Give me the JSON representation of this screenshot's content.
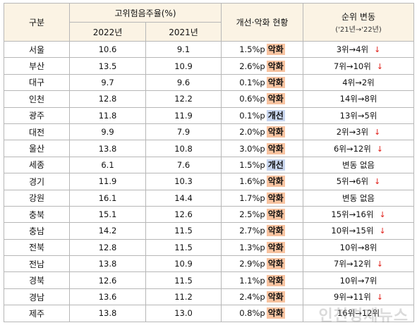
{
  "header": {
    "region": "구분",
    "rate_group": "고위험음주율(%)",
    "year_2022": "2022년",
    "year_2021": "2021년",
    "status": "개선·악화 현황",
    "rank_title": "순위 변동",
    "rank_sub": "('21년→'22년)"
  },
  "rows": [
    {
      "region": "서울",
      "v2022": "10.6",
      "v2021": "9.1",
      "diff": "1.5%p",
      "status": "악화",
      "status_type": "worse",
      "rank": "3위→4위",
      "arrow": "↓"
    },
    {
      "region": "부산",
      "v2022": "13.5",
      "v2021": "10.9",
      "diff": "2.6%p",
      "status": "악화",
      "status_type": "worse",
      "rank": "7위→10위",
      "arrow": "↓"
    },
    {
      "region": "대구",
      "v2022": "9.7",
      "v2021": "9.6",
      "diff": "0.1%p",
      "status": "악화",
      "status_type": "worse",
      "rank": "4위→2위",
      "arrow": ""
    },
    {
      "region": "인천",
      "v2022": "12.8",
      "v2021": "12.2",
      "diff": "0.6%p",
      "status": "악화",
      "status_type": "worse",
      "rank": "14위→8위",
      "arrow": ""
    },
    {
      "region": "광주",
      "v2022": "11.8",
      "v2021": "11.9",
      "diff": "0.1%p",
      "status": "개선",
      "status_type": "better",
      "rank": "13위→5위",
      "arrow": ""
    },
    {
      "region": "대전",
      "v2022": "9.9",
      "v2021": "7.9",
      "diff": "2.0%p",
      "status": "악화",
      "status_type": "worse",
      "rank": "2위→3위",
      "arrow": "↓"
    },
    {
      "region": "울산",
      "v2022": "13.8",
      "v2021": "10.8",
      "diff": "3.0%p",
      "status": "악화",
      "status_type": "worse",
      "rank": "6위→12위",
      "arrow": "↓"
    },
    {
      "region": "세종",
      "v2022": "6.1",
      "v2021": "7.6",
      "diff": "1.5%p",
      "status": "개선",
      "status_type": "better",
      "rank": "변동 없음",
      "arrow": ""
    },
    {
      "region": "경기",
      "v2022": "11.9",
      "v2021": "10.3",
      "diff": "1.6%p",
      "status": "악화",
      "status_type": "worse",
      "rank": "5위→6위",
      "arrow": "↓"
    },
    {
      "region": "강원",
      "v2022": "16.1",
      "v2021": "14.4",
      "diff": "1.7%p",
      "status": "악화",
      "status_type": "worse",
      "rank": "변동 없음",
      "arrow": ""
    },
    {
      "region": "충북",
      "v2022": "15.1",
      "v2021": "12.6",
      "diff": "2.5%p",
      "status": "악화",
      "status_type": "worse",
      "rank": "15위→16위",
      "arrow": "↓"
    },
    {
      "region": "충남",
      "v2022": "14.2",
      "v2021": "11.5",
      "diff": "2.7%p",
      "status": "악화",
      "status_type": "worse",
      "rank": "10위→15위",
      "arrow": "↓"
    },
    {
      "region": "전북",
      "v2022": "12.8",
      "v2021": "11.5",
      "diff": "1.3%p",
      "status": "악화",
      "status_type": "worse",
      "rank": "10위→8위",
      "arrow": ""
    },
    {
      "region": "전남",
      "v2022": "13.8",
      "v2021": "10.9",
      "diff": "2.9%p",
      "status": "악화",
      "status_type": "worse",
      "rank": "7위→12위",
      "arrow": "↓"
    },
    {
      "region": "경북",
      "v2022": "12.6",
      "v2021": "11.5",
      "diff": "1.1%p",
      "status": "악화",
      "status_type": "worse",
      "rank": "10위→7위",
      "arrow": ""
    },
    {
      "region": "경남",
      "v2022": "13.6",
      "v2021": "11.2",
      "diff": "2.4%p",
      "status": "악화",
      "status_type": "worse",
      "rank": "9위→11위",
      "arrow": "↓"
    },
    {
      "region": "제주",
      "v2022": "13.8",
      "v2021": "13.0",
      "diff": "0.8%p",
      "status": "악화",
      "status_type": "worse",
      "rank": "16위→12위",
      "arrow": ""
    }
  ],
  "watermark": "인천경제뉴스",
  "colors": {
    "header_bg": "#fbf3e4",
    "worse_bg": "#f8c3a0",
    "better_bg": "#c8d5ee",
    "arrow": "#e0201a"
  }
}
